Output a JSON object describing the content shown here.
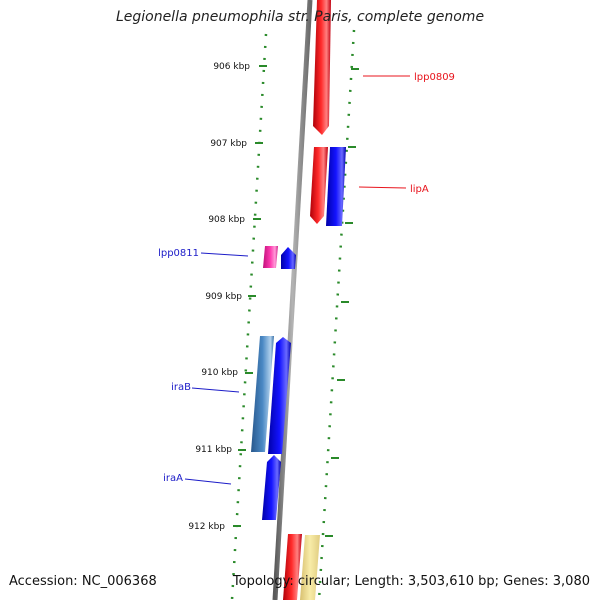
{
  "title": "Legionella pneumophila str. Paris, complete genome",
  "footer": {
    "accession": "Accession: NC_006368",
    "topology": "Topology: circular; Length: 3,503,610 bp; Genes: 3,080"
  },
  "ticks": [
    "906 kbp",
    "907 kbp",
    "908 kbp",
    "909 kbp",
    "910 kbp",
    "911 kbp",
    "912 kbp"
  ],
  "gene_labels": [
    {
      "name": "lpp0809",
      "text": "lpp0809",
      "color": "#e8141c"
    },
    {
      "name": "lipA",
      "text": "lipA",
      "color": "#e8141c"
    },
    {
      "name": "lpp0811",
      "text": "lpp0811",
      "color": "#1c1cc8"
    },
    {
      "name": "iraB",
      "text": "iraB",
      "color": "#1c1cc8"
    },
    {
      "name": "iraA",
      "text": "iraA",
      "color": "#1c1cc8"
    }
  ],
  "colors": {
    "backbone": "#8a8a8a",
    "tick": "#2a8a2a",
    "forward_gene": "#e8141c",
    "reverse_gene": "#1c1cf0",
    "pink_feature": "#f02c9c",
    "steelblue_feature": "#3c7ab4",
    "yellow_feature": "#f0e08c"
  }
}
